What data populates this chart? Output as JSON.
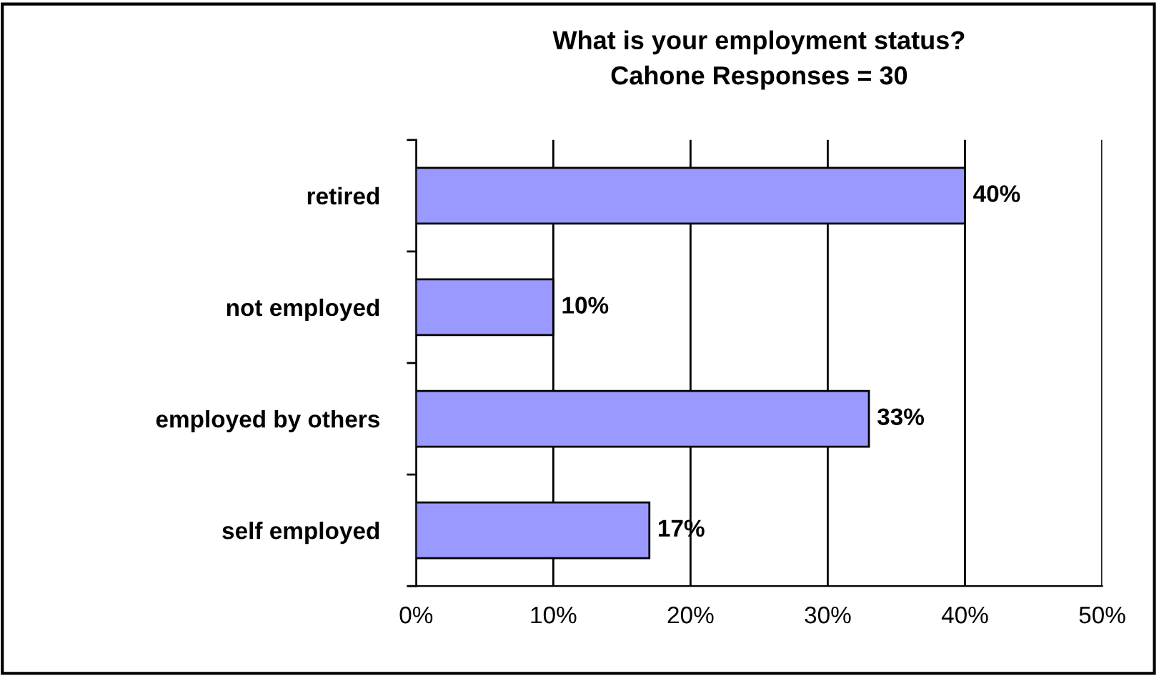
{
  "chart_data": {
    "type": "bar",
    "orientation": "horizontal",
    "title": "What is your employment status?\nCahone Responses = 30",
    "categories": [
      "retired",
      "not employed",
      "employed by others",
      "self employed"
    ],
    "values": [
      40,
      10,
      33,
      17
    ],
    "value_labels": [
      "40%",
      "10%",
      "33%",
      "17%"
    ],
    "color": "#9999ff",
    "xlim": [
      0,
      50
    ],
    "xticks": [
      {
        "value": 0,
        "label": "0%"
      },
      {
        "value": 10,
        "label": "10%"
      },
      {
        "value": 20,
        "label": "20%"
      },
      {
        "value": 30,
        "label": "30%"
      },
      {
        "value": 40,
        "label": "40%"
      },
      {
        "value": 50,
        "label": "50%"
      }
    ],
    "grid": "x",
    "legend": false
  }
}
